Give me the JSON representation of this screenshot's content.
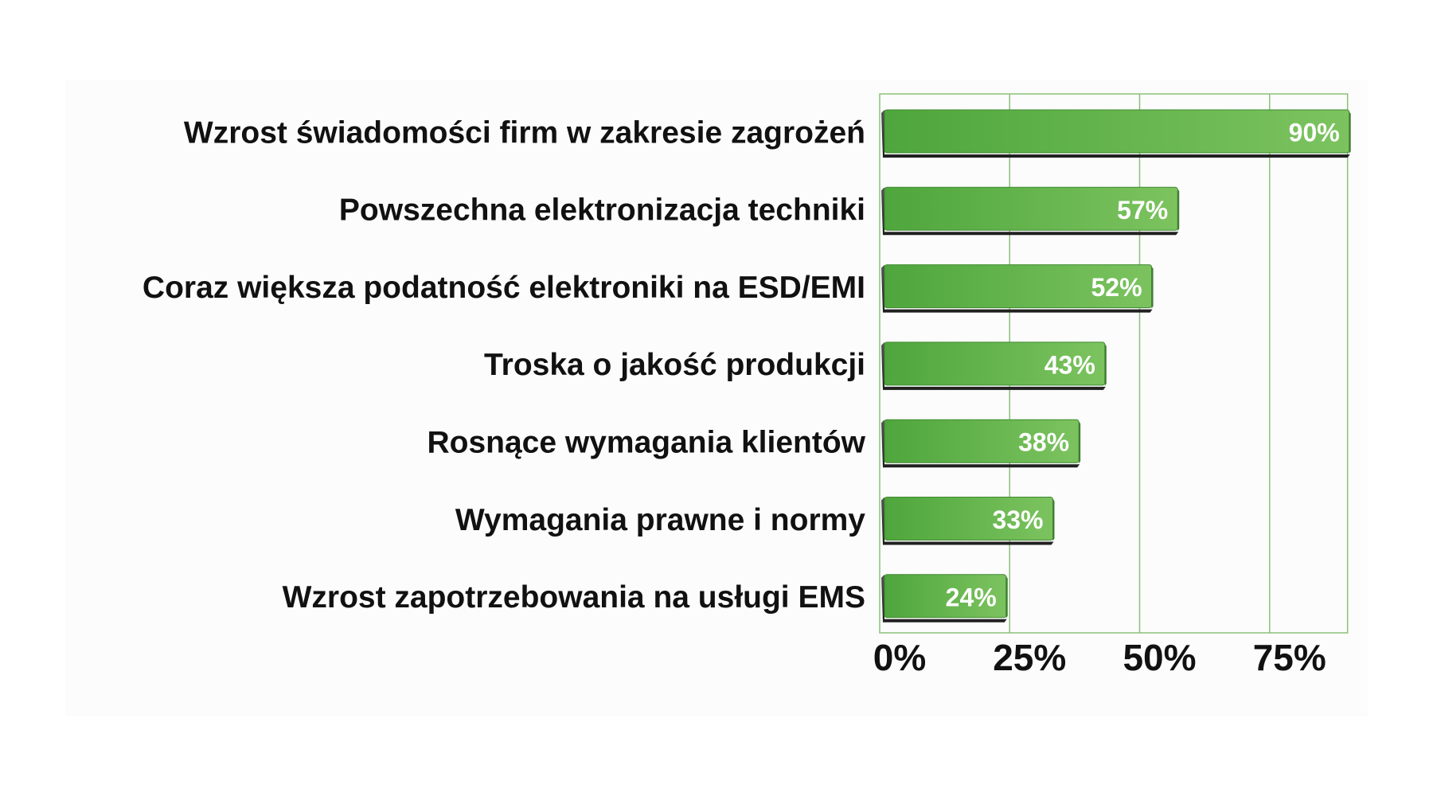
{
  "chart_data": {
    "type": "bar",
    "orientation": "horizontal",
    "categories": [
      "Wzrost świadomości firm w zakresie zagrożeń",
      "Powszechna elektronizacja techniki",
      "Coraz większa podatność elektroniki na ESD/EMI",
      "Troska o jakość produkcji",
      "Rosnące wymagania klientów",
      "Wymagania prawne i normy",
      "Wzrost zapotrzebowania na usługi EMS"
    ],
    "values": [
      90,
      57,
      52,
      43,
      38,
      33,
      24
    ],
    "value_labels": [
      "90%",
      "57%",
      "52%",
      "43%",
      "38%",
      "33%",
      "24%"
    ],
    "x_ticks": [
      0,
      25,
      50,
      75
    ],
    "x_tick_labels": [
      "0%",
      "25%",
      "50%",
      "75%"
    ],
    "xlim": [
      0,
      90
    ],
    "grid": "vertical",
    "legend": "none",
    "title": "",
    "xlabel": "",
    "ylabel": "",
    "colors": {
      "bar_fill": "#5cb04a",
      "bar_fill_light": "#7dc261",
      "bar_shadow": "#3a3a3a",
      "grid": "#8cc07a",
      "text": "#111111",
      "value_label": "#ffffff",
      "plot_background": "#fcfcfc"
    }
  }
}
